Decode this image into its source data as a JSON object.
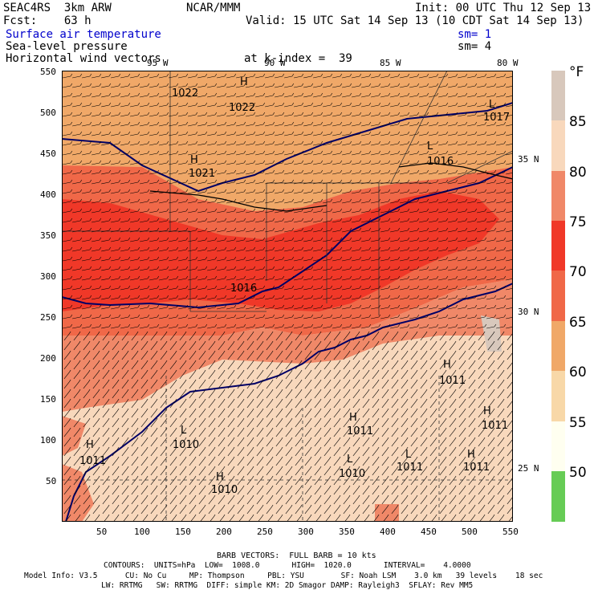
{
  "header": {
    "left1": "SEAC4RS  3km ARW",
    "left2": "Fcst:    63 h",
    "center1": "NCAR/MMM",
    "right1": "Init: 00 UTC Thu 12 Sep 13",
    "right2": "Valid: 15 UTC Sat 14 Sep 13 (10 CDT Sat 14 Sep 13)",
    "field1": "Surface air temperature",
    "field2": "Sea-level pressure",
    "field3": "Horizontal wind vectors",
    "sm1": "sm= 1",
    "sm2": "sm= 4",
    "level": "at k-index =  39"
  },
  "axes": {
    "y_ticks": [
      "550",
      "500",
      "450",
      "400",
      "350",
      "300",
      "250",
      "200",
      "150",
      "100",
      "50"
    ],
    "x_ticks": [
      "50",
      "100",
      "150",
      "200",
      "250",
      "300",
      "350",
      "400",
      "450",
      "500",
      "550"
    ],
    "top_lon": [
      "95 W",
      "90 W",
      "85 W",
      "80 W"
    ],
    "right_lat": [
      "35 N",
      "30 N",
      "25 N"
    ]
  },
  "legend": {
    "unit": "°F",
    "labels": [
      "85",
      "80",
      "75",
      "70",
      "65",
      "60",
      "55",
      "50"
    ],
    "colors": [
      "#d8c8bc",
      "#f8d8bc",
      "#f08868",
      "#f03828",
      "#f06848",
      "#f0a868",
      "#f8d8a8",
      "#fffff0",
      "#66cc55"
    ]
  },
  "pressure_labels": [
    {
      "kind": "H",
      "value": "1022"
    },
    {
      "kind": "H",
      "value": "1022"
    },
    {
      "kind": "H",
      "value": "1021"
    },
    {
      "kind": "L",
      "value": "1017"
    },
    {
      "kind": "L",
      "value": "1016"
    },
    {
      "kind": "H",
      "value": "1016"
    },
    {
      "kind": "H",
      "value": "1011"
    },
    {
      "kind": "H",
      "value": "1011"
    },
    {
      "kind": "H",
      "value": "1011"
    },
    {
      "kind": "L",
      "value": "1010"
    },
    {
      "kind": "H",
      "value": "1011"
    },
    {
      "kind": "L",
      "value": "1010"
    },
    {
      "kind": "L",
      "value": "1011"
    },
    {
      "kind": "H",
      "value": "1011"
    },
    {
      "kind": "H",
      "value": "1010"
    }
  ],
  "footer": {
    "barb": "BARB VECTORS:  FULL BARB = 10 kts",
    "contours": "CONTOURS:  UNITS=hPa  LOW=  1008.0       HIGH=  1020.0       INTERVAL=    4.0000",
    "model1": "Model Info: V3.5      CU: No Cu     MP: Thompson     PBL: YSU        SF: Noah LSM    3.0 km   39 levels    18 sec",
    "model2": "LW: RRTMG   SW: RRTMG  DIFF: simple KM: 2D Smagor DAMP: Rayleigh3  SFLAY: Rev MM5"
  }
}
